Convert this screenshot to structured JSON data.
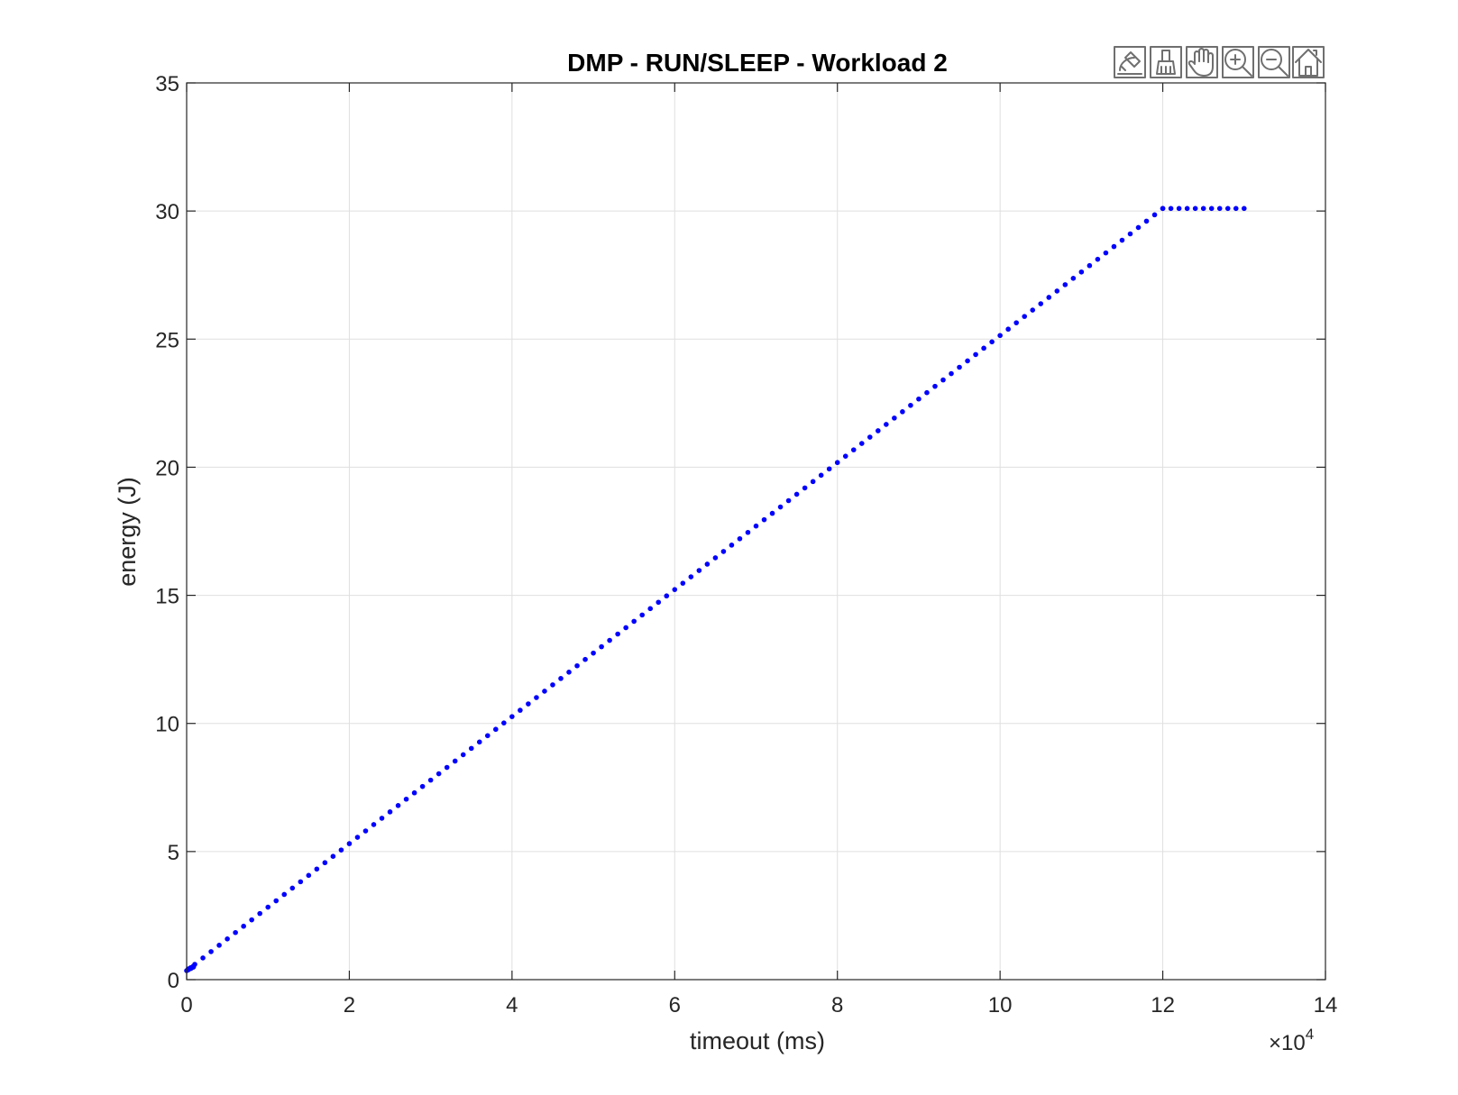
{
  "toolbar": {
    "icons": [
      "brush-data-icon",
      "clean-brush-icon",
      "pan-hand-icon",
      "zoom-in-icon",
      "zoom-out-icon",
      "home-icon"
    ]
  },
  "chart_data": {
    "type": "scatter",
    "title": "DMP - RUN/SLEEP - Workload 2",
    "xlabel": "timeout (ms)",
    "ylabel": "energy (J)",
    "x_exponent_label": "×10",
    "x_exponent_power": "4",
    "xlim": [
      0,
      14
    ],
    "ylim": [
      0,
      35
    ],
    "x_scale_note_value": 10000,
    "xticks": [
      "0",
      "2",
      "4",
      "6",
      "8",
      "10",
      "12",
      "14"
    ],
    "yticks": [
      "0",
      "5",
      "10",
      "15",
      "20",
      "25",
      "30",
      "35"
    ],
    "grid": true,
    "marker_color": "#0000ff",
    "series": [
      {
        "segments": [
          {
            "x_start": 0,
            "x_end": 12,
            "y_start": 0.35,
            "y_end": 30.1,
            "step": 0.1
          },
          {
            "x_start": 12,
            "x_end": 13,
            "y_start": 30.1,
            "y_end": 30.1,
            "step": 0.1
          }
        ],
        "extra_points": [
          [
            0.02,
            0.4
          ],
          [
            0.05,
            0.45
          ],
          [
            0.08,
            0.5
          ]
        ]
      }
    ]
  }
}
